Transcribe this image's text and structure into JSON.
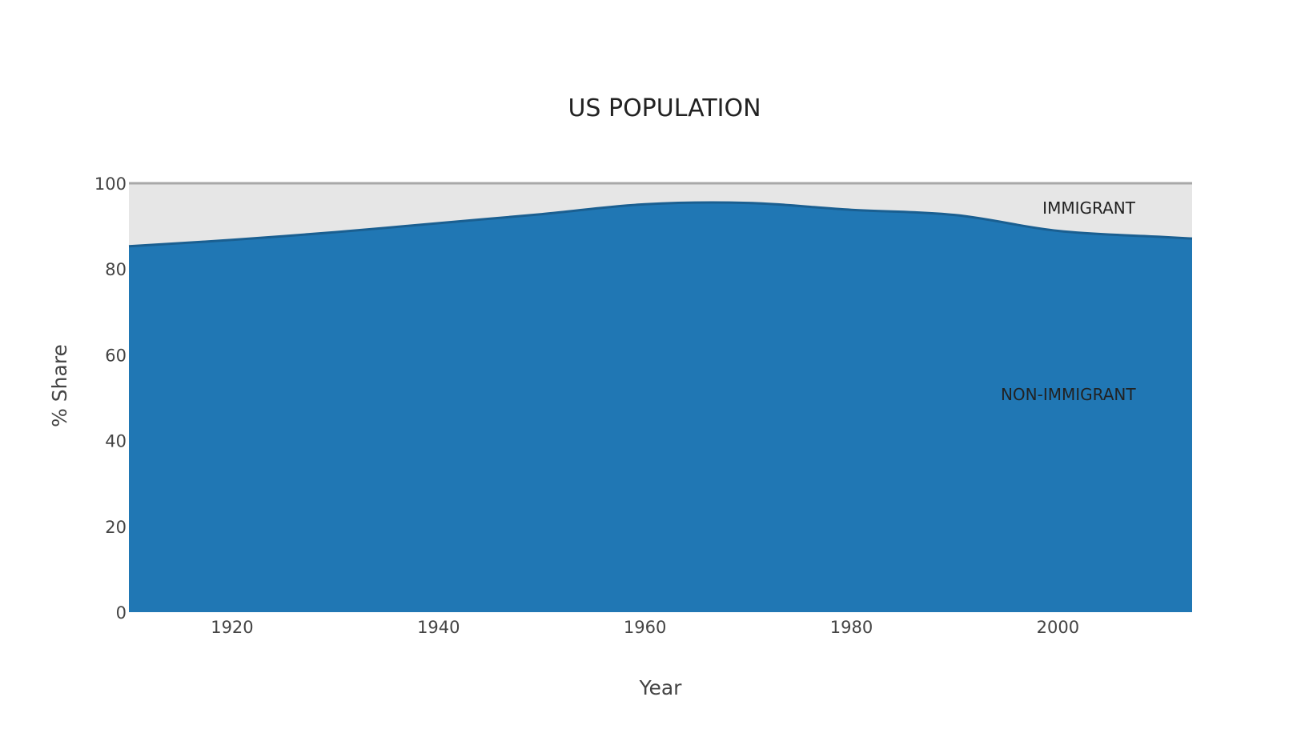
{
  "chart_data": {
    "type": "area",
    "stacked": true,
    "title": "US POPULATION",
    "xlabel": "Year",
    "ylabel": "% Share",
    "xlim": [
      1910,
      2013
    ],
    "ylim": [
      0,
      100
    ],
    "x_ticks": [
      1920,
      1940,
      1960,
      1980,
      2000
    ],
    "y_ticks": [
      0,
      20,
      40,
      60,
      80,
      100
    ],
    "x": [
      1910,
      1920,
      1930,
      1940,
      1950,
      1960,
      1970,
      1980,
      1990,
      2000,
      2010,
      2013
    ],
    "series": [
      {
        "name": "NON-IMMIGRANT",
        "color": "#2077b4",
        "values": [
          85.3,
          86.8,
          88.6,
          90.7,
          92.8,
          95.1,
          95.4,
          93.8,
          92.6,
          88.9,
          87.5,
          87.1
        ]
      },
      {
        "name": "IMMIGRANT",
        "color": "#e6e6e6",
        "values": [
          14.7,
          13.2,
          11.4,
          9.3,
          7.2,
          4.9,
          4.6,
          6.2,
          7.4,
          11.1,
          12.5,
          12.9
        ]
      }
    ],
    "series_label_anchors": [
      {
        "series": "NON-IMMIGRANT",
        "x": 2001,
        "y": 50.7
      },
      {
        "series": "IMMIGRANT",
        "x": 2003,
        "y": 94.2
      }
    ],
    "grid": false,
    "legend": "none"
  }
}
